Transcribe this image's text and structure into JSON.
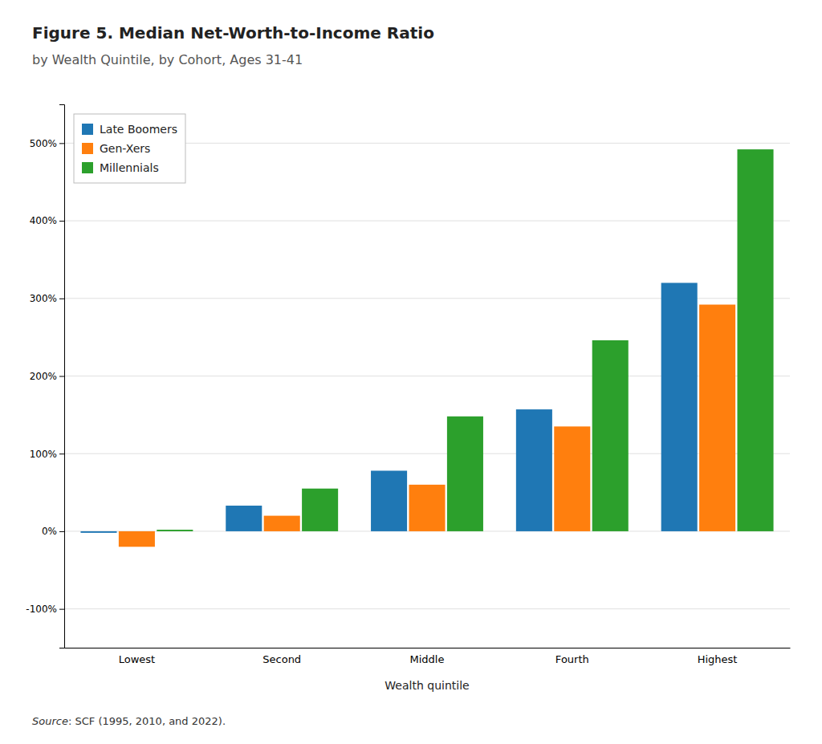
{
  "chart_data": {
    "type": "bar",
    "title": "Figure 5. Median Net-Worth-to-Income Ratio",
    "subtitle": "by Wealth Quintile, by Cohort, Ages 31-41",
    "x_label": "Wealth quintile",
    "categories": [
      "Lowest",
      "Second",
      "Middle",
      "Fourth",
      "Highest"
    ],
    "series": [
      {
        "name": "Late Boomers",
        "values": [
          -2,
          33,
          78,
          157,
          320
        ]
      },
      {
        "name": "Gen-Xers",
        "values": [
          -20,
          20,
          60,
          135,
          292
        ]
      },
      {
        "name": "Millennials",
        "values": [
          2,
          55,
          148,
          246,
          492
        ]
      }
    ],
    "ylim": [
      -150,
      550
    ],
    "yticks": [
      {
        "value": -100,
        "label": "-100%"
      },
      {
        "value": 0,
        "label": "0%"
      },
      {
        "value": 100,
        "label": "100%"
      },
      {
        "value": 200,
        "label": "200%"
      },
      {
        "value": 300,
        "label": "300%"
      },
      {
        "value": 400,
        "label": "400%"
      },
      {
        "value": 500,
        "label": "500%"
      }
    ],
    "grid": true,
    "legend": "upper left",
    "annotations": [
      "Source",
      ": SCF (1995, 2010, and 2022)."
    ]
  }
}
